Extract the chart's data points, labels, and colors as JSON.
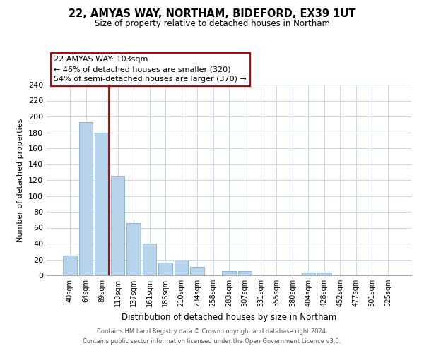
{
  "title": "22, AMYAS WAY, NORTHAM, BIDEFORD, EX39 1UT",
  "subtitle": "Size of property relative to detached houses in Northam",
  "xlabel": "Distribution of detached houses by size in Northam",
  "ylabel": "Number of detached properties",
  "bar_labels": [
    "40sqm",
    "64sqm",
    "89sqm",
    "113sqm",
    "137sqm",
    "161sqm",
    "186sqm",
    "210sqm",
    "234sqm",
    "258sqm",
    "283sqm",
    "307sqm",
    "331sqm",
    "355sqm",
    "380sqm",
    "404sqm",
    "428sqm",
    "452sqm",
    "477sqm",
    "501sqm",
    "525sqm"
  ],
  "bar_values": [
    25,
    193,
    180,
    125,
    66,
    40,
    16,
    19,
    11,
    0,
    5,
    5,
    0,
    0,
    0,
    4,
    4,
    0,
    0,
    0,
    0
  ],
  "bar_color": "#b8d4ea",
  "bar_edge_color": "#7aafd4",
  "highlight_bar_index": 2,
  "highlight_color": "#cc0000",
  "ylim": [
    0,
    240
  ],
  "yticks": [
    0,
    20,
    40,
    60,
    80,
    100,
    120,
    140,
    160,
    180,
    200,
    220,
    240
  ],
  "annotation_title": "22 AMYAS WAY: 103sqm",
  "annotation_line1": "← 46% of detached houses are smaller (320)",
  "annotation_line2": "54% of semi-detached houses are larger (370) →",
  "annotation_box_color": "#ffffff",
  "annotation_box_edge": "#cc0000",
  "footer_line1": "Contains HM Land Registry data © Crown copyright and database right 2024.",
  "footer_line2": "Contains public sector information licensed under the Open Government Licence v3.0.",
  "background_color": "#ffffff",
  "grid_color": "#c8d8e8"
}
